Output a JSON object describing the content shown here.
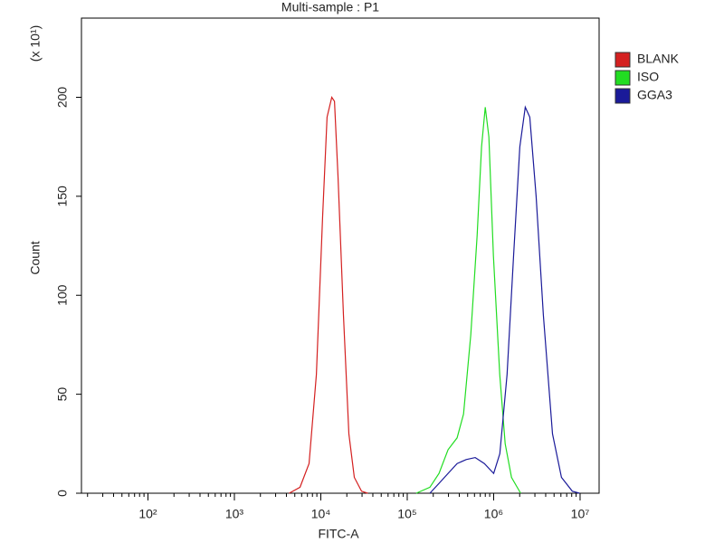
{
  "chart_data": {
    "type": "line",
    "title": "Multi-sample : P1",
    "xlabel": "FITC-A",
    "ylabel": "Count",
    "y_multiplier": "(x 10¹)",
    "xscale": "log",
    "xlim": [
      17,
      16600000
    ],
    "ylim": [
      0,
      240
    ],
    "xticks": [
      {
        "value": 100,
        "label": "10²"
      },
      {
        "value": 1000,
        "label": "10³"
      },
      {
        "value": 10000,
        "label": "10⁴"
      },
      {
        "value": 100000,
        "label": "10⁵"
      },
      {
        "value": 1000000,
        "label": "10⁶"
      },
      {
        "value": 10000000,
        "label": "10⁷"
      }
    ],
    "yticks": [
      0,
      50,
      100,
      150,
      200
    ],
    "legend": "right",
    "series": [
      {
        "name": "BLANK",
        "color": "#d42020",
        "x": [
          4300,
          5740,
          7310,
          8880,
          10500,
          11800,
          13400,
          14400,
          15800,
          18300,
          21100,
          24400,
          29600,
          35000
        ],
        "values": [
          0,
          3,
          15,
          60,
          140,
          190,
          200,
          198,
          160,
          90,
          30,
          8,
          1,
          0
        ]
      },
      {
        "name": "ISO",
        "color": "#22dd22",
        "x": [
          127000,
          183000,
          233000,
          297000,
          378000,
          448000,
          543000,
          643000,
          725000,
          799000,
          880000,
          993000,
          1175000,
          1360000,
          1610000,
          2050000
        ],
        "values": [
          0,
          3,
          10,
          22,
          28,
          40,
          80,
          130,
          175,
          195,
          180,
          120,
          60,
          25,
          8,
          0
        ]
      },
      {
        "name": "GGA3",
        "color": "#1a1a99",
        "x": [
          183000,
          233000,
          297000,
          378000,
          481000,
          612000,
          780000,
          1000000,
          1180000,
          1430000,
          1700000,
          2010000,
          2320000,
          2620000,
          3100000,
          3760000,
          4790000,
          6090000,
          8130000,
          9860000
        ],
        "values": [
          0,
          5,
          10,
          15,
          17,
          18,
          15,
          10,
          20,
          60,
          120,
          175,
          195,
          190,
          150,
          90,
          30,
          8,
          1,
          0
        ]
      }
    ]
  }
}
